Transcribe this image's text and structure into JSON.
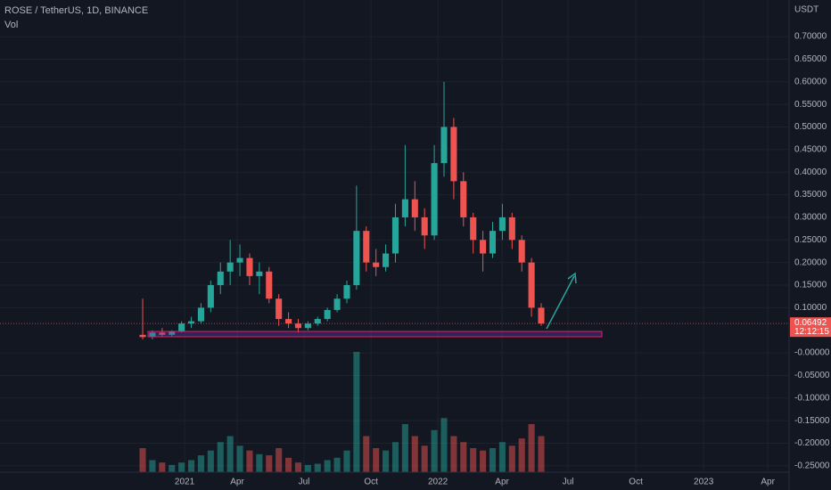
{
  "chart_data": {
    "type": "candlestick",
    "title": "ROSE / TetherUS, 1D, BINANCE",
    "volume_label": "Vol",
    "currency": "USDT",
    "last_price": 0.06492,
    "countdown": "12:12:15",
    "up_color": "#26a69a",
    "down_color": "#ef5350",
    "grid": true,
    "xlim": [
      -14.68,
      66.5
    ],
    "xticks": [
      {
        "value": 4.31,
        "label": "2021"
      },
      {
        "value": 9.72,
        "label": "Apr"
      },
      {
        "value": 16.6,
        "label": "Jul"
      },
      {
        "value": 23.49,
        "label": "Oct"
      },
      {
        "value": 30.37,
        "label": "2022"
      },
      {
        "value": 36.97,
        "label": "Apr"
      },
      {
        "value": 43.76,
        "label": "Jul"
      },
      {
        "value": 50.73,
        "label": "Oct"
      },
      {
        "value": 57.71,
        "label": "2023"
      },
      {
        "value": 64.31,
        "label": "Apr"
      }
    ],
    "ylim": [
      -0.264,
      0.781
    ],
    "yticks": [
      {
        "value": 0.7,
        "label": "0.70000"
      },
      {
        "value": 0.65,
        "label": "0.65000"
      },
      {
        "value": 0.6,
        "label": "0.60000"
      },
      {
        "value": 0.55,
        "label": "0.55000"
      },
      {
        "value": 0.5,
        "label": "0.50000"
      },
      {
        "value": 0.45,
        "label": "0.45000"
      },
      {
        "value": 0.4,
        "label": "0.40000"
      },
      {
        "value": 0.35,
        "label": "0.35000"
      },
      {
        "value": 0.3,
        "label": "0.30000"
      },
      {
        "value": 0.25,
        "label": "0.25000"
      },
      {
        "value": 0.2,
        "label": "0.20000"
      },
      {
        "value": 0.15,
        "label": "0.15000"
      },
      {
        "value": 0.1,
        "label": "0.10000"
      },
      {
        "value": 0,
        "label": "-0.00000"
      },
      {
        "value": -0.05,
        "label": "-0.05000"
      },
      {
        "value": -0.1,
        "label": "-0.10000"
      },
      {
        "value": -0.15,
        "label": "-0.15000"
      },
      {
        "value": -0.2,
        "label": "-0.20000"
      },
      {
        "value": -0.25,
        "label": "-0.25000"
      }
    ],
    "x": [
      0,
      1,
      2,
      3,
      4,
      5,
      6,
      7,
      8,
      9,
      10,
      11,
      12,
      13,
      14,
      15,
      16,
      17,
      18,
      19,
      20,
      21,
      22,
      23,
      24,
      25,
      26,
      27,
      28,
      29,
      30,
      31,
      32,
      33,
      34,
      35,
      36,
      37,
      38,
      39,
      40,
      41
    ],
    "open": [
      0.04,
      0.035,
      0.045,
      0.04,
      0.048,
      0.065,
      0.07,
      0.1,
      0.15,
      0.18,
      0.2,
      0.21,
      0.17,
      0.18,
      0.12,
      0.075,
      0.065,
      0.055,
      0.065,
      0.075,
      0.095,
      0.12,
      0.15,
      0.27,
      0.2,
      0.19,
      0.22,
      0.3,
      0.34,
      0.3,
      0.26,
      0.42,
      0.5,
      0.38,
      0.3,
      0.25,
      0.22,
      0.27,
      0.3,
      0.25,
      0.2,
      0.1
    ],
    "high": [
      0.12,
      0.05,
      0.055,
      0.05,
      0.07,
      0.08,
      0.11,
      0.16,
      0.2,
      0.25,
      0.24,
      0.22,
      0.2,
      0.19,
      0.13,
      0.09,
      0.075,
      0.07,
      0.08,
      0.1,
      0.13,
      0.16,
      0.37,
      0.28,
      0.23,
      0.24,
      0.33,
      0.46,
      0.38,
      0.32,
      0.46,
      0.6,
      0.52,
      0.4,
      0.31,
      0.27,
      0.29,
      0.33,
      0.31,
      0.26,
      0.21,
      0.11
    ],
    "low": [
      0.03,
      0.03,
      0.035,
      0.035,
      0.045,
      0.055,
      0.065,
      0.09,
      0.13,
      0.15,
      0.17,
      0.15,
      0.13,
      0.11,
      0.06,
      0.055,
      0.045,
      0.05,
      0.06,
      0.07,
      0.09,
      0.11,
      0.14,
      0.18,
      0.17,
      0.18,
      0.2,
      0.28,
      0.27,
      0.23,
      0.25,
      0.39,
      0.34,
      0.28,
      0.22,
      0.18,
      0.21,
      0.25,
      0.23,
      0.18,
      0.08,
      0.06
    ],
    "close": [
      0.035,
      0.045,
      0.04,
      0.048,
      0.065,
      0.07,
      0.1,
      0.15,
      0.18,
      0.2,
      0.21,
      0.17,
      0.18,
      0.12,
      0.075,
      0.065,
      0.055,
      0.065,
      0.075,
      0.095,
      0.12,
      0.15,
      0.27,
      0.2,
      0.19,
      0.22,
      0.3,
      0.34,
      0.3,
      0.26,
      0.42,
      0.5,
      0.38,
      0.3,
      0.25,
      0.22,
      0.27,
      0.3,
      0.25,
      0.2,
      0.1,
      0.065
    ],
    "volume": [
      20,
      10,
      8,
      6,
      8,
      10,
      14,
      18,
      25,
      30,
      22,
      18,
      15,
      14,
      20,
      12,
      8,
      6,
      7,
      10,
      12,
      18,
      100,
      30,
      20,
      18,
      25,
      40,
      30,
      22,
      35,
      45,
      30,
      25,
      20,
      18,
      20,
      25,
      22,
      28,
      40,
      30
    ]
  }
}
